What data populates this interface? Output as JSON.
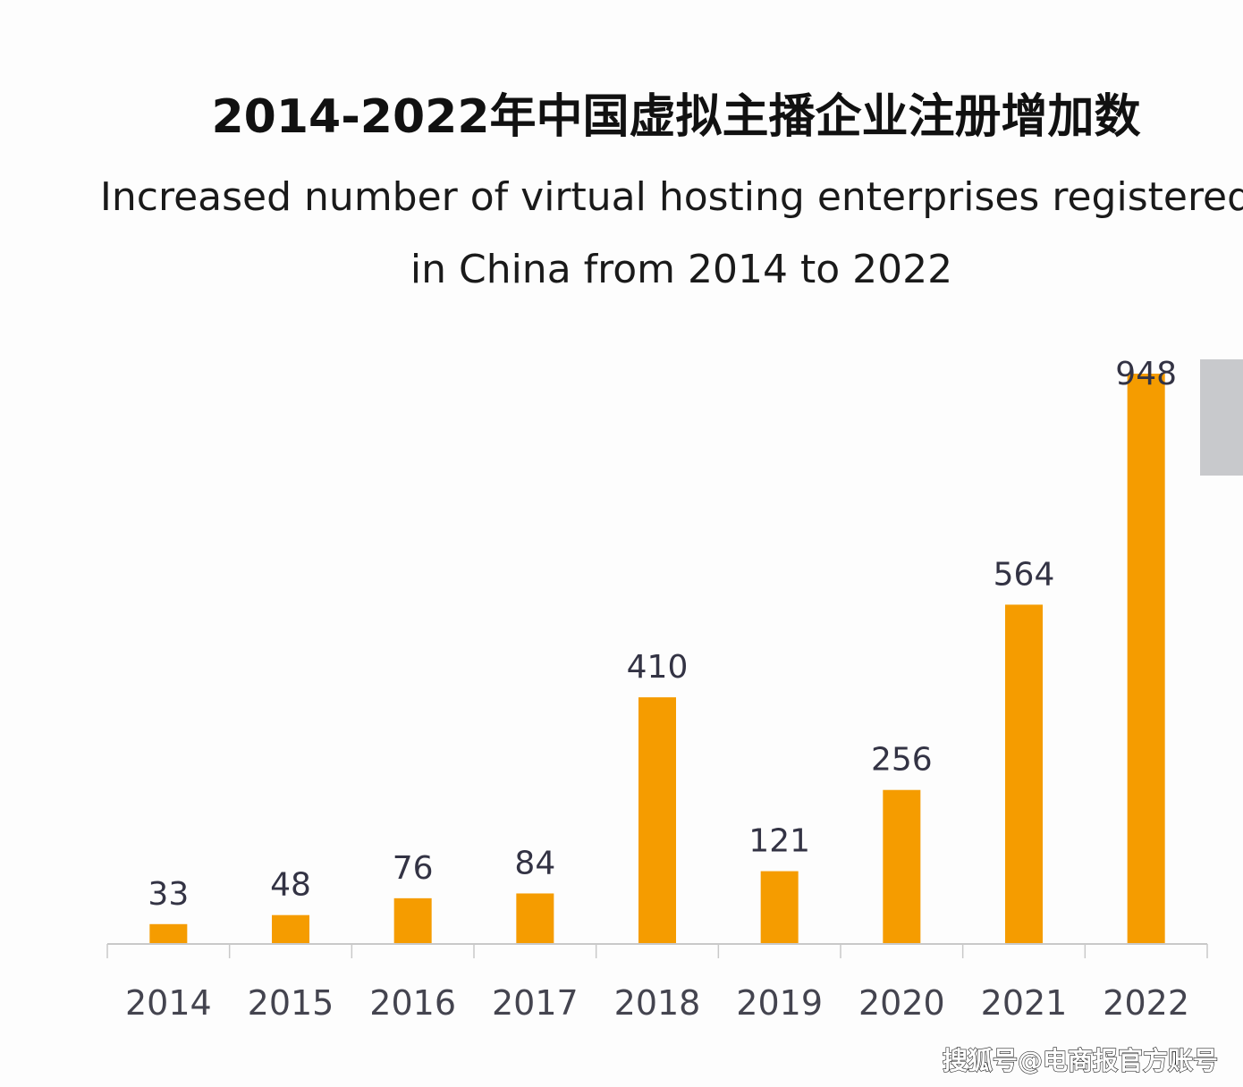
{
  "chart_data": {
    "type": "bar",
    "title": "2014-2022年中国虚拟主播企业注册增加数",
    "subtitle_lines": [
      "Increased number of virtual hosting enterprises registered",
      "in China from 2014 to 2022"
    ],
    "categories": [
      "2014",
      "2015",
      "2016",
      "2017",
      "2018",
      "2019",
      "2020",
      "2021",
      "2022"
    ],
    "values": [
      33,
      48,
      76,
      84,
      410,
      121,
      256,
      564,
      948
    ],
    "xlabel": "",
    "ylabel": "",
    "ylim": [
      0,
      948
    ],
    "grid": false,
    "bar_color": "#F59C00",
    "data_labels": true
  },
  "watermark": "搜狐号@电商报官方账号"
}
